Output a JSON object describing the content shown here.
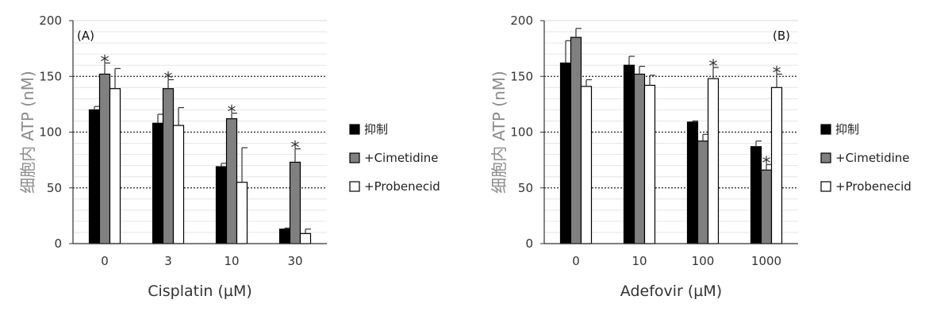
{
  "chart_data": [
    {
      "type": "bar",
      "panel_label": "(A)",
      "xlabel": "Cisplatin (µM)",
      "ylabel": "细胞内 ATP (nM)",
      "ylim": [
        0,
        200
      ],
      "yticks": [
        "0",
        "50",
        "100",
        "150",
        "200"
      ],
      "categories": [
        "0",
        "3",
        "10",
        "30"
      ],
      "reference_lines": [
        50,
        100,
        150
      ],
      "grid": "dotted",
      "legend_position": "right",
      "series": [
        {
          "name": "抑制",
          "color": "#000000",
          "values": [
            120,
            108,
            69,
            13
          ],
          "errors": [
            3,
            8,
            3,
            1
          ]
        },
        {
          "name": "+Cimetidine",
          "color": "#808080",
          "values": [
            152,
            139,
            112,
            73
          ],
          "errors": [
            10,
            8,
            5,
            12
          ]
        },
        {
          "name": "+Probenecid",
          "color": "#ffffff",
          "values": [
            139,
            106,
            55,
            9
          ],
          "errors": [
            18,
            16,
            31,
            4
          ]
        }
      ],
      "annotations": [
        {
          "category": "0",
          "series": "+Cimetidine",
          "text": "*"
        },
        {
          "category": "3",
          "series": "+Cimetidine",
          "text": "*"
        },
        {
          "category": "10",
          "series": "+Cimetidine",
          "text": "*"
        },
        {
          "category": "30",
          "series": "+Cimetidine",
          "text": "*"
        }
      ]
    },
    {
      "type": "bar",
      "panel_label": "(B)",
      "xlabel": "Adefovir (µM)",
      "ylabel": "细胞内 ATP (nM)",
      "ylim": [
        0,
        200
      ],
      "yticks": [
        "0",
        "50",
        "100",
        "150",
        "200"
      ],
      "categories": [
        "0",
        "10",
        "100",
        "1000"
      ],
      "reference_lines": [
        50,
        100,
        150
      ],
      "grid": "dotted",
      "legend_position": "right",
      "series": [
        {
          "name": "抑制",
          "color": "#000000",
          "values": [
            162,
            160,
            109,
            87
          ],
          "errors": [
            20,
            8,
            1,
            5
          ]
        },
        {
          "name": "+Cimetidine",
          "color": "#808080",
          "values": [
            185,
            152,
            92,
            66
          ],
          "errors": [
            8,
            7,
            6,
            5
          ]
        },
        {
          "name": "+Probenecid",
          "color": "#ffffff",
          "values": [
            141,
            142,
            148,
            140
          ],
          "errors": [
            6,
            9,
            10,
            12
          ]
        }
      ],
      "annotations": [
        {
          "category": "100",
          "series": "+Probenecid",
          "text": "*"
        },
        {
          "category": "1000",
          "series": "+Cimetidine",
          "text": "*"
        },
        {
          "category": "1000",
          "series": "+Probenecid",
          "text": "*"
        }
      ]
    }
  ]
}
